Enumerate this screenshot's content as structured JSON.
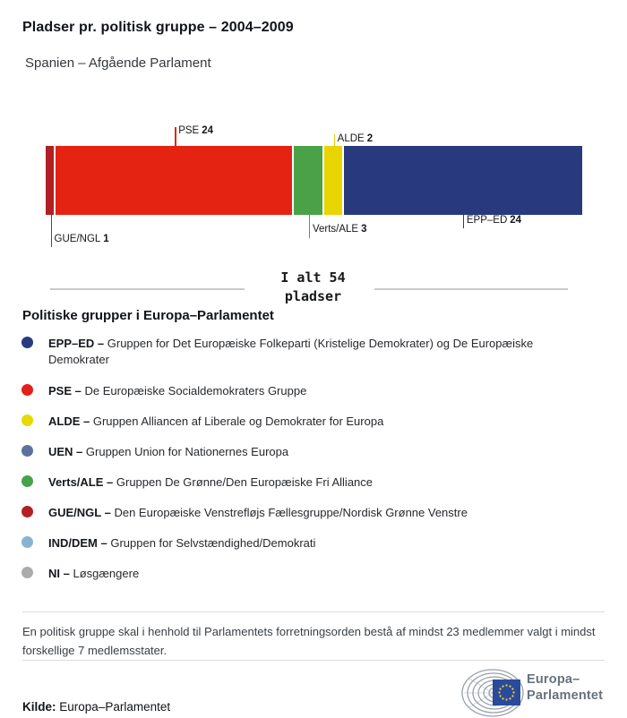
{
  "header": {
    "title": "Pladser pr. politisk gruppe – 2004–2009",
    "subtitle": "Spanien – Afgående Parlament"
  },
  "chart_data": {
    "type": "bar",
    "orientation": "horizontal-stacked",
    "title": "Pladser pr. politisk gruppe – 2004–2009",
    "subtitle": "Spanien – Afgående Parlament",
    "total_seats": 54,
    "total_label_lines": [
      "I alt 54",
      "pladser"
    ],
    "categories": [
      "GUE/NGL",
      "PSE",
      "Verts/ALE",
      "ALDE",
      "EPP–ED"
    ],
    "values": [
      1,
      24,
      3,
      2,
      24
    ],
    "segments": [
      {
        "group": "GUE/NGL",
        "seats": 1,
        "color": "#b21f24",
        "label_side": "below"
      },
      {
        "group": "PSE",
        "seats": 24,
        "color": "#e42313",
        "label_side": "above"
      },
      {
        "group": "Verts/ALE",
        "seats": 3,
        "color": "#4aa147",
        "label_side": "below"
      },
      {
        "group": "ALDE",
        "seats": 2,
        "color": "#e8d500",
        "label_side": "above"
      },
      {
        "group": "EPP–ED",
        "seats": 24,
        "color": "#283a7d",
        "label_side": "below"
      }
    ]
  },
  "legend": {
    "heading": "Politiske grupper i Europa–Parlamentet",
    "items": [
      {
        "name": "EPP–ED",
        "color": "#253c80",
        "desc": "Gruppen for Det Europæiske Folkeparti (Kristelige Demokrater) og De Europæiske Demokrater"
      },
      {
        "name": "PSE",
        "color": "#e32119",
        "desc": "De Europæiske Socialdemokraters Gruppe"
      },
      {
        "name": "ALDE",
        "color": "#e8d900",
        "desc": "Gruppen Alliancen af Liberale og Demokrater for Europa"
      },
      {
        "name": "UEN",
        "color": "#5d719c",
        "desc": "Gruppen Union for Nationernes Europa"
      },
      {
        "name": "Verts/ALE",
        "color": "#44a248",
        "desc": "Gruppen De Grønne/Den Europæiske Fri Alliance"
      },
      {
        "name": "GUE/NGL",
        "color": "#b51f24",
        "desc": "Den Europæiske Venstrefløjs Fællesgruppe/Nordisk Grønne Venstre"
      },
      {
        "name": "IND/DEM",
        "color": "#8ab3d1",
        "desc": "Gruppen for Selvstændighed/Demokrati"
      },
      {
        "name": "NI",
        "color": "#ababab",
        "desc": "Løsgængere"
      }
    ]
  },
  "footnote": {
    "lines": [
      "En politisk gruppe skal i henhold til Parlamentets forretningsorden bestå af mindst 23 medlemmer valgt i mindst",
      "forskellige 7 medlemsstater."
    ]
  },
  "footer": {
    "source_label": "Kilde:",
    "source": "Europa–Parlamentet",
    "logo_line1": "Europa–",
    "logo_line2": "Parlamentet"
  }
}
